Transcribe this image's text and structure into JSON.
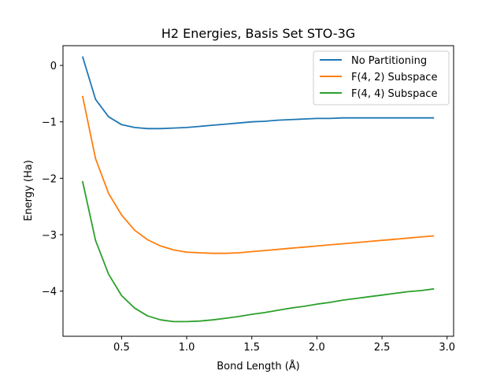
{
  "chart_data": {
    "type": "line",
    "title": "H2 Energies, Basis Set STO-3G",
    "xlabel": "Bond Length (Å)",
    "ylabel": "Energy (Ha)",
    "xlim": [
      0.05,
      3.05
    ],
    "ylim": [
      -4.8,
      0.35
    ],
    "xticks": [
      0.5,
      1.0,
      1.5,
      2.0,
      2.5,
      3.0
    ],
    "xtick_labels": [
      "0.5",
      "1.0",
      "1.5",
      "2.0",
      "2.5",
      "3.0"
    ],
    "yticks": [
      0,
      -1,
      -2,
      -3,
      -4
    ],
    "ytick_labels": [
      "0",
      "−1",
      "−2",
      "−3",
      "−4"
    ],
    "grid": false,
    "legend_position": "top-right",
    "x": [
      0.2,
      0.3,
      0.4,
      0.5,
      0.6,
      0.7,
      0.8,
      0.9,
      1.0,
      1.1,
      1.2,
      1.3,
      1.4,
      1.5,
      1.6,
      1.7,
      1.8,
      1.9,
      2.0,
      2.1,
      2.2,
      2.3,
      2.4,
      2.5,
      2.6,
      2.7,
      2.8,
      2.9
    ],
    "series": [
      {
        "name": "No Partitioning",
        "color": "#1f77b4",
        "values": [
          0.16,
          -0.6,
          -0.91,
          -1.05,
          -1.1,
          -1.12,
          -1.12,
          -1.11,
          -1.1,
          -1.08,
          -1.06,
          -1.04,
          -1.02,
          -1.0,
          -0.99,
          -0.97,
          -0.96,
          -0.95,
          -0.94,
          -0.94,
          -0.93,
          -0.93,
          -0.93,
          -0.93,
          -0.93,
          -0.93,
          -0.93,
          -0.93
        ]
      },
      {
        "name": "F(4, 2) Subspace",
        "color": "#ff7f0e",
        "values": [
          -0.54,
          -1.65,
          -2.27,
          -2.65,
          -2.92,
          -3.09,
          -3.2,
          -3.27,
          -3.31,
          -3.32,
          -3.33,
          -3.33,
          -3.32,
          -3.3,
          -3.28,
          -3.26,
          -3.24,
          -3.22,
          -3.2,
          -3.18,
          -3.16,
          -3.14,
          -3.12,
          -3.1,
          -3.08,
          -3.06,
          -3.04,
          -3.02
        ]
      },
      {
        "name": "F(4, 4) Subspace",
        "color": "#2ca02c",
        "values": [
          -2.05,
          -3.1,
          -3.7,
          -4.08,
          -4.3,
          -4.44,
          -4.51,
          -4.54,
          -4.54,
          -4.53,
          -4.51,
          -4.48,
          -4.45,
          -4.41,
          -4.38,
          -4.34,
          -4.3,
          -4.27,
          -4.23,
          -4.2,
          -4.16,
          -4.13,
          -4.1,
          -4.07,
          -4.04,
          -4.01,
          -3.99,
          -3.96
        ]
      }
    ]
  }
}
